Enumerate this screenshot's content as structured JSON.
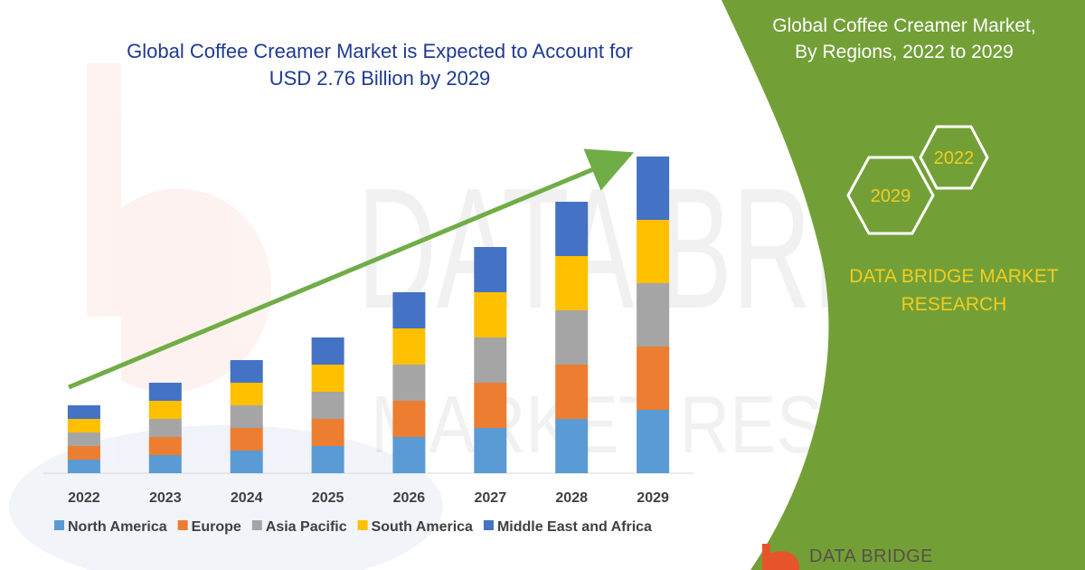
{
  "colors": {
    "north_america": "#5b9bd5",
    "europe": "#ed7d31",
    "asia_pacific": "#a5a5a5",
    "south_america": "#ffc000",
    "middle_east_africa": "#4472c4",
    "panel_green": "#72a037",
    "arrow_green": "#70ad47",
    "title_blue": "#1f3a93",
    "brand_yellow": "#f2cc1f"
  },
  "side_panel": {
    "title_line1": "Global Coffee Creamer Market,",
    "title_line2": "By Regions, 2022 to 2029",
    "hex_top_label": "2022",
    "hex_bottom_label": "2029",
    "brand_line1": "DATA BRIDGE MARKET",
    "brand_line2": "RESEARCH",
    "footer_brand": "DATA BRIDGE"
  },
  "watermark": {
    "line1": "DATA BRIDGE",
    "line2": "MARKET RESEARCH"
  },
  "chart_data": {
    "type": "bar",
    "stacked": true,
    "title_line1": "Global Coffee Creamer Market is Expected to Account for",
    "title_line2": "USD 2.76 Billion by 2029",
    "categories": [
      "2022",
      "2023",
      "2024",
      "2025",
      "2026",
      "2027",
      "2028",
      "2029"
    ],
    "series": [
      {
        "name": "North America",
        "key": "north_america",
        "values": [
          15,
          20,
          25,
          30,
          40,
          50,
          60,
          70
        ]
      },
      {
        "name": "Europe",
        "key": "europe",
        "values": [
          15,
          20,
          25,
          30,
          40,
          50,
          60,
          70
        ]
      },
      {
        "name": "Asia Pacific",
        "key": "asia_pacific",
        "values": [
          15,
          20,
          25,
          30,
          40,
          50,
          60,
          70
        ]
      },
      {
        "name": "South America",
        "key": "south_america",
        "values": [
          15,
          20,
          25,
          30,
          40,
          50,
          60,
          70
        ]
      },
      {
        "name": "Middle East and Africa",
        "key": "middle_east_africa",
        "values": [
          15,
          20,
          25,
          30,
          40,
          50,
          60,
          70
        ]
      }
    ],
    "ylim": [
      0,
      360
    ],
    "xlabel": "",
    "ylabel": "",
    "grid": false,
    "legend_position": "bottom",
    "annotation": "upward trend arrow"
  }
}
